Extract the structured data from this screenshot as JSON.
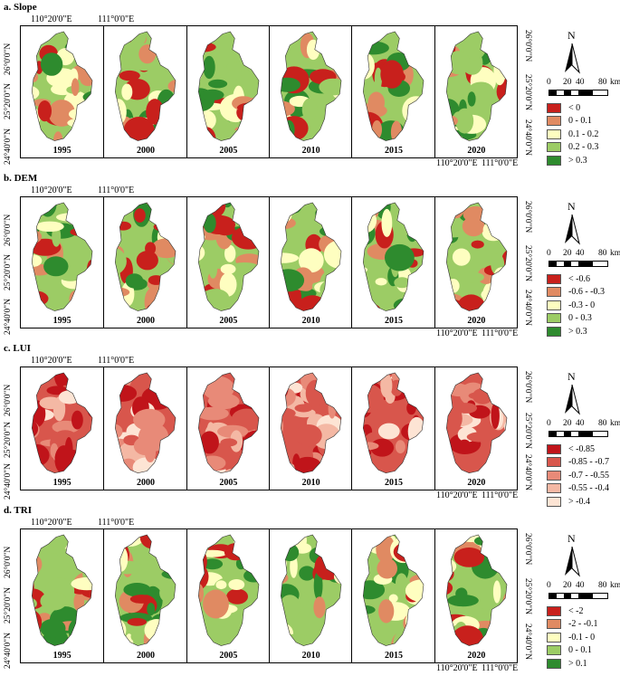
{
  "coords": {
    "lon_west": "110°20'0\"E",
    "lon_east": "111°0'0\"E",
    "lat_north": "26°0'0\"N",
    "lat_mid": "25°20'0\"N",
    "lat_south": "24°40'0\"N"
  },
  "scalebar": {
    "zero": "0",
    "t20": "20",
    "t40": "40",
    "t80": "80",
    "unit": "km"
  },
  "north_letter": "N",
  "panels": [
    {
      "title": "a. Slope",
      "years": [
        "1995",
        "2000",
        "2005",
        "2010",
        "2015",
        "2020"
      ],
      "legend": [
        {
          "label": "< 0",
          "color": "#c8201c"
        },
        {
          "label": "0 - 0.1",
          "color": "#e08a62"
        },
        {
          "label": "0.1 - 0.2",
          "color": "#fefec0"
        },
        {
          "label": "0.2 - 0.3",
          "color": "#9ccc65"
        },
        {
          "label": "> 0.3",
          "color": "#2e8b2e"
        }
      ]
    },
    {
      "title": "b. DEM",
      "years": [
        "1995",
        "2000",
        "2005",
        "2010",
        "2015",
        "2020"
      ],
      "legend": [
        {
          "label": "< -0.6",
          "color": "#c8201c"
        },
        {
          "label": "-0.6 - -0.3",
          "color": "#e08a62"
        },
        {
          "label": "-0.3 - 0",
          "color": "#fefec0"
        },
        {
          "label": "0 - 0.3",
          "color": "#9ccc65"
        },
        {
          "label": "> 0.3",
          "color": "#2e8b2e"
        }
      ]
    },
    {
      "title": "c. LUI",
      "years": [
        "1995",
        "2000",
        "2005",
        "2010",
        "2015",
        "2020"
      ],
      "legend": [
        {
          "label": "< -0.85",
          "color": "#c0141a"
        },
        {
          "label": "-0.85 - -0.7",
          "color": "#d8564c"
        },
        {
          "label": "-0.7 - -0.55",
          "color": "#e88a78"
        },
        {
          "label": "-0.55 - -0.4",
          "color": "#f4b8a4"
        },
        {
          "label": "> -0.4",
          "color": "#fde4d4"
        }
      ]
    },
    {
      "title": "d. TRI",
      "years": [
        "1995",
        "2000",
        "2005",
        "2010",
        "2015",
        "2020"
      ],
      "legend": [
        {
          "label": "< -2",
          "color": "#c8201c"
        },
        {
          "label": "-2 - -0.1",
          "color": "#e08a62"
        },
        {
          "label": "-0.1 - 0",
          "color": "#fefec0"
        },
        {
          "label": "0 - 0.1",
          "color": "#9ccc65"
        },
        {
          "label": "> 0.1",
          "color": "#2e8b2e"
        }
      ]
    }
  ]
}
